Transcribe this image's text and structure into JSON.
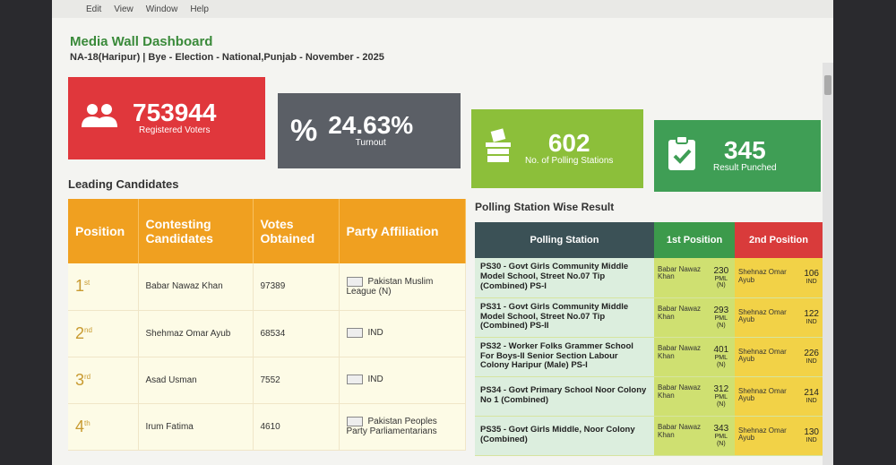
{
  "menu": [
    "Edit",
    "View",
    "Window",
    "Help"
  ],
  "header": {
    "title": "Media Wall Dashboard",
    "subtitle": "NA-18(Haripur) | Bye - Election - National,Punjab - November - 2025"
  },
  "stats": [
    {
      "value": "753944",
      "label": "Registered Voters",
      "icon": "users-icon",
      "color": "#e0373c"
    },
    {
      "value": "24.63%",
      "label": "Turnout",
      "icon": "percent-icon",
      "color": "#5b5f66"
    },
    {
      "value": "602",
      "label": "No. of Polling Stations",
      "icon": "ballot-box-icon",
      "color": "#8cbf3a"
    },
    {
      "value": "345",
      "label": "Result Punched",
      "icon": "clipboard-check-icon",
      "color": "#3f9e55"
    }
  ],
  "leading": {
    "title": "Leading Candidates",
    "headers": [
      "Position",
      "Contesting Candidates",
      "Votes Obtained",
      "Party Affiliation"
    ],
    "rows": [
      {
        "pos": "1",
        "suffix": "st",
        "name": "Babar Nawaz Khan",
        "votes": "97389",
        "party": "Pakistan Muslim League (N)"
      },
      {
        "pos": "2",
        "suffix": "nd",
        "name": "Shehmaz Omar Ayub",
        "votes": "68534",
        "party": "IND"
      },
      {
        "pos": "3",
        "suffix": "rd",
        "name": "Asad Usman",
        "votes": "7552",
        "party": "IND"
      },
      {
        "pos": "4",
        "suffix": "th",
        "name": "Irum Fatima",
        "votes": "4610",
        "party": "Pakistan Peoples Party Parliamentarians"
      }
    ]
  },
  "polling": {
    "title": "Polling Station Wise Result",
    "headers": [
      "Polling Station",
      "1st Position",
      "2nd Position"
    ],
    "rows": [
      {
        "station": "PS30 - Govt Girls Community Middle Model School, Street No.07 Tip (Combined) PS-I",
        "first_name": "Babar Nawaz Khan",
        "first_votes": "230",
        "first_party": "PML (N)",
        "second_name": "Shehnaz Omar Ayub",
        "second_votes": "106",
        "second_party": "IND"
      },
      {
        "station": "PS31 - Govt Girls Community Middle Model School, Street No.07 Tip (Combined) PS-II",
        "first_name": "Babar Nawaz Khan",
        "first_votes": "293",
        "first_party": "PML (N)",
        "second_name": "Shehnaz Omar Ayub",
        "second_votes": "122",
        "second_party": "IND"
      },
      {
        "station": "PS32 - Worker Folks Grammer School For Boys-II Senior Section Labour Colony Haripur (Male) PS-I",
        "first_name": "Babar Nawaz Khan",
        "first_votes": "401",
        "first_party": "PML (N)",
        "second_name": "Shehnaz Omar Ayub",
        "second_votes": "226",
        "second_party": "IND"
      },
      {
        "station": "PS34 - Govt Primary School Noor Colony No 1 (Combined)",
        "first_name": "Babar Nawaz Khan",
        "first_votes": "312",
        "first_party": "PML (N)",
        "second_name": "Shehnaz Omar Ayub",
        "second_votes": "214",
        "second_party": "IND"
      },
      {
        "station": "PS35 - Govt Girls Middle, Noor Colony (Combined)",
        "first_name": "Babar Nawaz Khan",
        "first_votes": "343",
        "first_party": "PML (N)",
        "second_name": "Shehnaz Omar Ayub",
        "second_votes": "130",
        "second_party": "IND"
      }
    ]
  }
}
